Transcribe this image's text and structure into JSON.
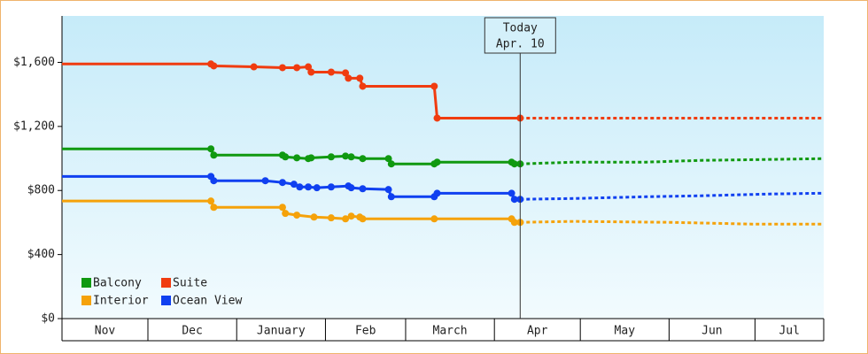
{
  "chart_data": {
    "type": "line",
    "xlim": [
      0,
      266
    ],
    "ylim": [
      0,
      1890
    ],
    "yticks": [
      {
        "value": 0,
        "label": "$0"
      },
      {
        "value": 400,
        "label": "$400"
      },
      {
        "value": 800,
        "label": "$800"
      },
      {
        "value": 1200,
        "label": "$1,200"
      },
      {
        "value": 1600,
        "label": "$1,600"
      }
    ],
    "months": [
      "Nov",
      "Dec",
      "January",
      "Feb",
      "March",
      "Apr",
      "May",
      "Jun",
      "Jul"
    ],
    "month_bounds": [
      0,
      30,
      61,
      92,
      120,
      151,
      181,
      212,
      242,
      266
    ],
    "legend": "bottom-left",
    "today": {
      "x": 160,
      "label": "Today",
      "date": "Apr. 10"
    },
    "series": [
      {
        "name": "Balcony",
        "color": "#109910",
        "x": [
          0,
          52,
          53,
          77,
          78,
          82,
          86,
          87,
          94,
          99,
          101,
          105,
          114,
          115,
          130,
          131,
          157,
          158,
          160
        ],
        "values": [
          1060,
          1060,
          1021,
          1021,
          1010,
          1004,
          999,
          1004,
          1010,
          1015,
          1010,
          999,
          999,
          966,
          966,
          977,
          977,
          966,
          966
        ],
        "forecast_x": [
          160,
          179,
          204,
          223,
          244,
          266
        ],
        "forecast_values": [
          966,
          977,
          977,
          988,
          993,
          999
        ]
      },
      {
        "name": "Suite",
        "color": "#f03c10",
        "x": [
          0,
          52,
          53,
          67,
          77,
          82,
          86,
          87,
          94,
          99,
          100,
          104,
          105,
          130,
          131,
          160
        ],
        "values": [
          1590,
          1590,
          1578,
          1572,
          1567,
          1567,
          1572,
          1539,
          1539,
          1534,
          1501,
          1501,
          1451,
          1451,
          1252,
          1252
        ],
        "forecast_x": [
          160,
          266
        ],
        "forecast_values": [
          1252,
          1252
        ]
      },
      {
        "name": "Interior",
        "color": "#f5a20a",
        "x": [
          0,
          52,
          53,
          77,
          78,
          82,
          88,
          94,
          99,
          101,
          104,
          105,
          130,
          157,
          158,
          160
        ],
        "values": [
          734,
          734,
          695,
          695,
          657,
          646,
          634,
          629,
          623,
          640,
          634,
          623,
          623,
          623,
          601,
          601
        ],
        "forecast_x": [
          160,
          179,
          213,
          241,
          266
        ],
        "forecast_values": [
          601,
          607,
          601,
          590,
          590
        ]
      },
      {
        "name": "Ocean View",
        "color": "#1040f0",
        "x": [
          0,
          52,
          53,
          71,
          77,
          81,
          83,
          86,
          89,
          94,
          100,
          101,
          105,
          114,
          115,
          130,
          131,
          157,
          158,
          160
        ],
        "values": [
          888,
          888,
          861,
          861,
          850,
          839,
          822,
          822,
          817,
          822,
          828,
          817,
          811,
          806,
          761,
          761,
          783,
          783,
          745,
          745
        ],
        "forecast_x": [
          160,
          179,
          204,
          223,
          247,
          266
        ],
        "forecast_values": [
          745,
          750,
          761,
          767,
          778,
          783
        ]
      }
    ]
  }
}
